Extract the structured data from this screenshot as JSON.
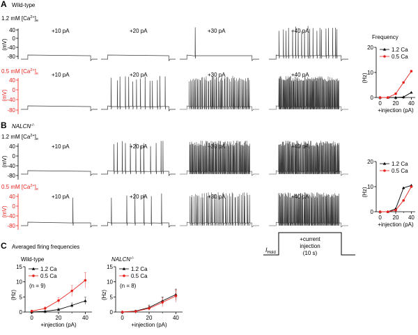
{
  "colors": {
    "black": "#000000",
    "red": "#e8211c",
    "trace": "#3a3a3a",
    "ca12": "#000000",
    "ca05": "#e8211c"
  },
  "panelA": {
    "letter": "A",
    "genotype": "Wild-type",
    "rows": [
      {
        "ca_value": "1.2 mM [Ca",
        "ca_sup": "2+",
        "ca_close": "]",
        "ca_sub": "e",
        "units": "(mV)",
        "yticks": [
          "40",
          "0",
          "-40",
          "-80"
        ],
        "color": "#000000",
        "steps": [
          {
            "label": "+10 pA",
            "spikes": 0
          },
          {
            "label": "+20 pA",
            "spikes": 0
          },
          {
            "label": "+30 pA",
            "spikes": 1
          },
          {
            "label": "+40 pA",
            "spikes": 20
          }
        ]
      },
      {
        "ca_value": "0.5 mM [Ca",
        "ca_sup": "2+",
        "ca_close": "]",
        "ca_sub": "e",
        "units": "(mV)",
        "yticks": [
          "40",
          "0",
          "-40",
          "-80"
        ],
        "color": "#e8211c",
        "steps": [
          {
            "label": "+10 pA",
            "spikes": 0
          },
          {
            "label": "+20 pA",
            "spikes": 14
          },
          {
            "label": "+30 pA",
            "spikes": 60
          },
          {
            "label": "+40 pA",
            "spikes": 100
          }
        ]
      }
    ]
  },
  "panelB": {
    "letter": "B",
    "genotype": "NALCN",
    "genotype_sup": "-/-",
    "rows": [
      {
        "ca_value": "1.2 mM [Ca",
        "ca_sup": "2+",
        "ca_close": "]",
        "ca_sub": "e",
        "units": "(mV)",
        "yticks": [
          "40",
          "0",
          "-40",
          "-80"
        ],
        "color": "#000000",
        "steps": [
          {
            "label": "+10 pA",
            "spikes": 0
          },
          {
            "label": "+20 pA",
            "spikes": 12
          },
          {
            "label": "+30 pA",
            "spikes": 90
          },
          {
            "label": "+40 pA",
            "spikes": 100
          }
        ]
      },
      {
        "ca_value": "0.5 mM [Ca",
        "ca_sup": "2+",
        "ca_close": "]",
        "ca_sub": "e",
        "units": "(mV)",
        "yticks": [
          "40",
          "0",
          "-40",
          "-80"
        ],
        "color": "#e8211c",
        "steps": [
          {
            "label": "+10 pA",
            "spikes": 1
          },
          {
            "label": "+20 pA",
            "spikes": 6
          },
          {
            "label": "+30 pA",
            "spikes": 45
          },
          {
            "label": "+40 pA",
            "spikes": 90
          }
        ]
      }
    ]
  },
  "stimulus": {
    "hold_label": "I",
    "hold_sub": "Hold",
    "line1": "+current",
    "line2": "injection",
    "line3": "(10 s)"
  },
  "panelC": {
    "letter": "C",
    "title": "Averaged firing frequencies"
  },
  "chart_data": [
    {
      "id": "A-frequency",
      "type": "line",
      "title": "Frequency",
      "xlabel": "+injection (pA)",
      "ylabel": "(Hz)",
      "xlim": [
        -5,
        45
      ],
      "ylim": [
        0,
        20
      ],
      "xticks": [
        0,
        20,
        40
      ],
      "yticks": [
        0,
        10,
        20
      ],
      "legend": "top-left",
      "x": [
        0,
        10,
        20,
        30,
        40
      ],
      "series": [
        {
          "name": "1.2 Ca",
          "values": [
            0,
            0,
            0,
            0.2,
            2
          ]
        },
        {
          "name": "0.5 Ca",
          "values": [
            0,
            0,
            1.5,
            6,
            10.5
          ]
        }
      ]
    },
    {
      "id": "B-frequency",
      "type": "line",
      "title": "",
      "xlabel": "+injection (pA)",
      "ylabel": "(Hz)",
      "xlim": [
        -5,
        45
      ],
      "ylim": [
        0,
        20
      ],
      "xticks": [
        0,
        20,
        40
      ],
      "yticks": [
        0,
        10,
        20
      ],
      "legend": "top-left",
      "x": [
        0,
        10,
        20,
        30,
        40
      ],
      "series": [
        {
          "name": "1.2 Ca",
          "values": [
            0,
            0,
            1.2,
            9.5,
            10.5
          ]
        },
        {
          "name": "0.5 Ca",
          "values": [
            0,
            0,
            0.6,
            4.5,
            10
          ]
        }
      ]
    },
    {
      "id": "C-wildtype",
      "type": "line",
      "title": "Wild-type",
      "note": "(n = 9)",
      "xlabel": "+injection (pA)",
      "ylabel": "(Hz)",
      "xlim": [
        -5,
        45
      ],
      "ylim": [
        0,
        15
      ],
      "xticks": [
        0,
        20,
        40
      ],
      "yticks": [
        0,
        5,
        10,
        15
      ],
      "legend": "top-left",
      "x": [
        0,
        10,
        20,
        30,
        40
      ],
      "series": [
        {
          "name": "1.2 Ca",
          "values": [
            0,
            0.2,
            0.8,
            2.2,
            3.7
          ],
          "errors": [
            0.1,
            0.2,
            0.4,
            0.8,
            1.2
          ]
        },
        {
          "name": "0.5 Ca",
          "values": [
            0.3,
            1.2,
            3.8,
            7,
            10.5
          ],
          "errors": [
            0.2,
            0.5,
            1,
            1.8,
            2.5
          ]
        }
      ]
    },
    {
      "id": "C-nalcn",
      "type": "line",
      "title": "NALCN",
      "title_sup": "-/-",
      "note": "(n = 8)",
      "xlabel": "+injection (pA)",
      "ylabel": "(Hz)",
      "xlim": [
        -5,
        45
      ],
      "ylim": [
        0,
        15
      ],
      "xticks": [
        0,
        20,
        40
      ],
      "yticks": [
        0,
        5,
        10,
        15
      ],
      "legend": "top-left",
      "x": [
        0,
        10,
        20,
        30,
        40
      ],
      "series": [
        {
          "name": "1.2 Ca",
          "values": [
            0,
            0.3,
            1.5,
            3.7,
            5.8
          ],
          "errors": [
            0.1,
            0.3,
            0.8,
            1.3,
            1.8
          ]
        },
        {
          "name": "0.5 Ca",
          "values": [
            0,
            0.2,
            1.2,
            3.2,
            5.3
          ],
          "errors": [
            0.1,
            0.3,
            0.8,
            1.5,
            2
          ]
        }
      ]
    }
  ]
}
